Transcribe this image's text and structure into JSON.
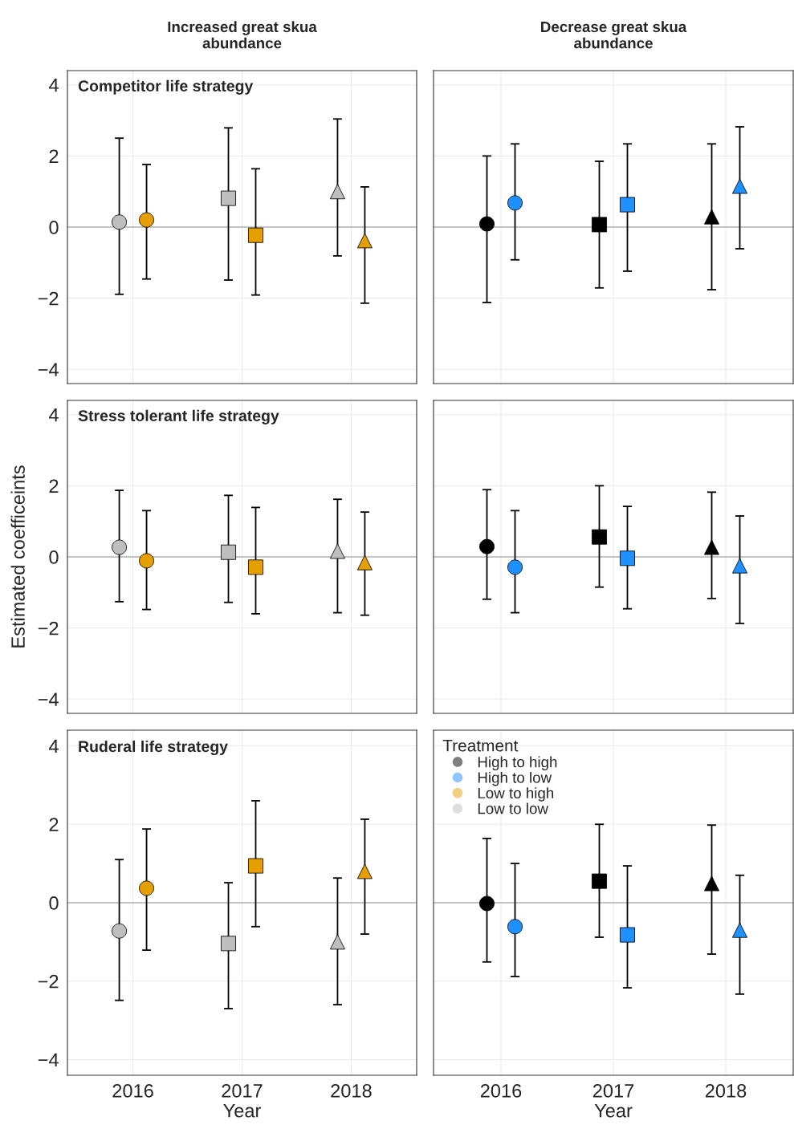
{
  "chart_data": [
    {
      "type": "scatter",
      "title": "Increased great skua\nabundance",
      "subtitle": "Competitor life strategy",
      "categories": [
        "2016",
        "2017",
        "2018"
      ],
      "marker": [
        "circle",
        "square",
        "triangle"
      ],
      "ylim": [
        -4.4,
        4.4
      ],
      "yticks": [
        {
          "value": -4,
          "label": "−4"
        },
        {
          "value": -2,
          "label": "−2"
        },
        0,
        2,
        4
      ],
      "grid": true,
      "legend": "bottom right",
      "tick_labels": "y",
      "ref_lines": [
        {
          "axis": "y",
          "value": 0,
          "color": "#b3b3b3"
        }
      ],
      "series": [
        {
          "name": "Low to low",
          "color": "#bebebe",
          "values": [
            0.14,
            0.81,
            1.0
          ],
          "errors": [
            [
              -1.89,
              2.5
            ],
            [
              -1.49,
              2.79
            ],
            [
              -0.81,
              3.04
            ]
          ]
        },
        {
          "name": "Low to high",
          "color": "#e69f00",
          "values": [
            0.2,
            -0.23,
            -0.38
          ],
          "errors": [
            [
              -1.46,
              1.76
            ],
            [
              -1.91,
              1.64
            ],
            [
              -2.14,
              1.13
            ]
          ]
        }
      ]
    },
    {
      "type": "scatter",
      "title": "Decrease great skua\nabundance",
      "categories": [
        "2016",
        "2017",
        "2018"
      ],
      "marker": [
        "circle",
        "square",
        "triangle"
      ],
      "ylim": [
        -4.4,
        4.4
      ],
      "yticks": [
        {
          "value": -4,
          "label": null
        },
        {
          "value": -2,
          "label": null
        },
        {
          "value": 0,
          "label": null
        },
        {
          "value": 2,
          "label": null
        },
        {
          "value": 4,
          "label": null
        }
      ],
      "grid": true,
      "legend": "bottom left",
      "tick_labels": false,
      "ref_lines": [
        {
          "axis": "y",
          "value": 0,
          "color": "#b3b3b3"
        }
      ],
      "series": [
        {
          "name": "High to high",
          "color": "#000000",
          "values": [
            0.09,
            0.07,
            0.29
          ],
          "errors": [
            [
              -2.12,
              2.0
            ],
            [
              -1.71,
              1.85
            ],
            [
              -1.76,
              2.34
            ]
          ]
        },
        {
          "name": "High to low",
          "color": "#1e90ff",
          "values": [
            0.68,
            0.63,
            1.15
          ],
          "errors": [
            [
              -0.92,
              2.34
            ],
            [
              -1.24,
              2.34
            ],
            [
              -0.61,
              2.82
            ]
          ]
        }
      ]
    },
    {
      "type": "scatter",
      "subtitle": "Stress tolerant life strategy",
      "ylabel": "Estimated coefficeints",
      "categories": [
        "2016",
        "2017",
        "2018"
      ],
      "marker": [
        "circle",
        "square",
        "triangle"
      ],
      "ylim": [
        -4.4,
        4.4
      ],
      "yticks": [
        {
          "value": -4,
          "label": "−4"
        },
        {
          "value": -2,
          "label": "−2"
        },
        0,
        2,
        4
      ],
      "grid": true,
      "legend": false,
      "tick_labels": "y",
      "ref_lines": [
        {
          "axis": "y",
          "value": 0,
          "color": "#b3b3b3"
        }
      ],
      "series": [
        {
          "name": "Low to low",
          "color": "#bebebe",
          "values": [
            0.27,
            0.13,
            0.16
          ],
          "errors": [
            [
              -1.26,
              1.87
            ],
            [
              -1.28,
              1.73
            ],
            [
              -1.57,
              1.62
            ]
          ]
        },
        {
          "name": "Low to high",
          "color": "#e69f00",
          "values": [
            -0.11,
            -0.29,
            -0.16
          ],
          "errors": [
            [
              -1.48,
              1.3
            ],
            [
              -1.6,
              1.39
            ],
            [
              -1.64,
              1.26
            ]
          ]
        }
      ]
    },
    {
      "type": "scatter",
      "categories": [
        "2016",
        "2017",
        "2018"
      ],
      "marker": [
        "circle",
        "square",
        "triangle"
      ],
      "ylim": [
        -4.4,
        4.4
      ],
      "yticks": [
        {
          "value": -4,
          "label": null
        },
        {
          "value": -2,
          "label": null
        },
        {
          "value": 0,
          "label": null
        },
        {
          "value": 2,
          "label": null
        },
        {
          "value": 4,
          "label": null
        }
      ],
      "grid": true,
      "legend": false,
      "tick_labels": false,
      "ref_lines": [
        {
          "axis": "y",
          "value": 0,
          "color": "#b3b3b3"
        }
      ],
      "series": [
        {
          "name": "High to high",
          "color": "#000000",
          "values": [
            0.29,
            0.56,
            0.27
          ],
          "errors": [
            [
              -1.19,
              1.89
            ],
            [
              -0.85,
              2.0
            ],
            [
              -1.17,
              1.82
            ]
          ]
        },
        {
          "name": "High to low",
          "color": "#1e90ff",
          "values": [
            -0.29,
            -0.04,
            -0.25
          ],
          "errors": [
            [
              -1.57,
              1.3
            ],
            [
              -1.46,
              1.42
            ],
            [
              -1.87,
              1.15
            ]
          ]
        }
      ]
    },
    {
      "type": "scatter",
      "subtitle": "Ruderal life strategy",
      "xlabel": "Year",
      "categories": [
        "2016",
        "2017",
        "2018"
      ],
      "marker": [
        "circle",
        "square",
        "triangle"
      ],
      "ylim": [
        -4.4,
        4.4
      ],
      "yticks": [
        {
          "value": -4,
          "label": "−4"
        },
        {
          "value": -2,
          "label": "−2"
        },
        0,
        2,
        4
      ],
      "grid": true,
      "legend": false,
      "ref_lines": [
        {
          "axis": "y",
          "value": 0,
          "color": "#b3b3b3"
        }
      ],
      "series": [
        {
          "name": "Low to low",
          "color": "#bebebe",
          "values": [
            -0.72,
            -1.04,
            -1.0
          ],
          "errors": [
            [
              -2.49,
              1.1
            ],
            [
              -2.7,
              0.51
            ],
            [
              -2.6,
              0.63
            ]
          ]
        },
        {
          "name": "Low to high",
          "color": "#e69f00",
          "values": [
            0.37,
            0.94,
            0.8
          ],
          "errors": [
            [
              -1.21,
              1.88
            ],
            [
              -0.61,
              2.6
            ],
            [
              -0.8,
              2.13
            ]
          ]
        }
      ]
    },
    {
      "type": "scatter",
      "xlabel": "Year",
      "legend_title": "Treatment",
      "categories": [
        "2016",
        "2017",
        "2018"
      ],
      "marker": [
        "circle",
        "square",
        "triangle"
      ],
      "ylim": [
        -4.4,
        4.4
      ],
      "yticks": [
        {
          "value": -4,
          "label": null
        },
        {
          "value": -2,
          "label": null
        },
        {
          "value": 0,
          "label": null
        },
        {
          "value": 2,
          "label": null
        },
        {
          "value": 4,
          "label": null
        }
      ],
      "grid": true,
      "legend": "top left",
      "tick_labels": "x",
      "ref_lines": [
        {
          "axis": "y",
          "value": 0,
          "color": "#b3b3b3"
        }
      ],
      "series": [
        {
          "name": "High to high",
          "color": "#000000",
          "values": [
            -0.02,
            0.55,
            0.49
          ],
          "errors": [
            [
              -1.51,
              1.64
            ],
            [
              -0.88,
              2.0
            ],
            [
              -1.31,
              1.98
            ]
          ]
        },
        {
          "name": "High to low",
          "color": "#1e90ff",
          "values": [
            -0.61,
            -0.82,
            -0.7
          ],
          "errors": [
            [
              -1.88,
              1.0
            ],
            [
              -2.17,
              0.94
            ],
            [
              -2.33,
              0.7
            ]
          ]
        }
      ]
    }
  ]
}
